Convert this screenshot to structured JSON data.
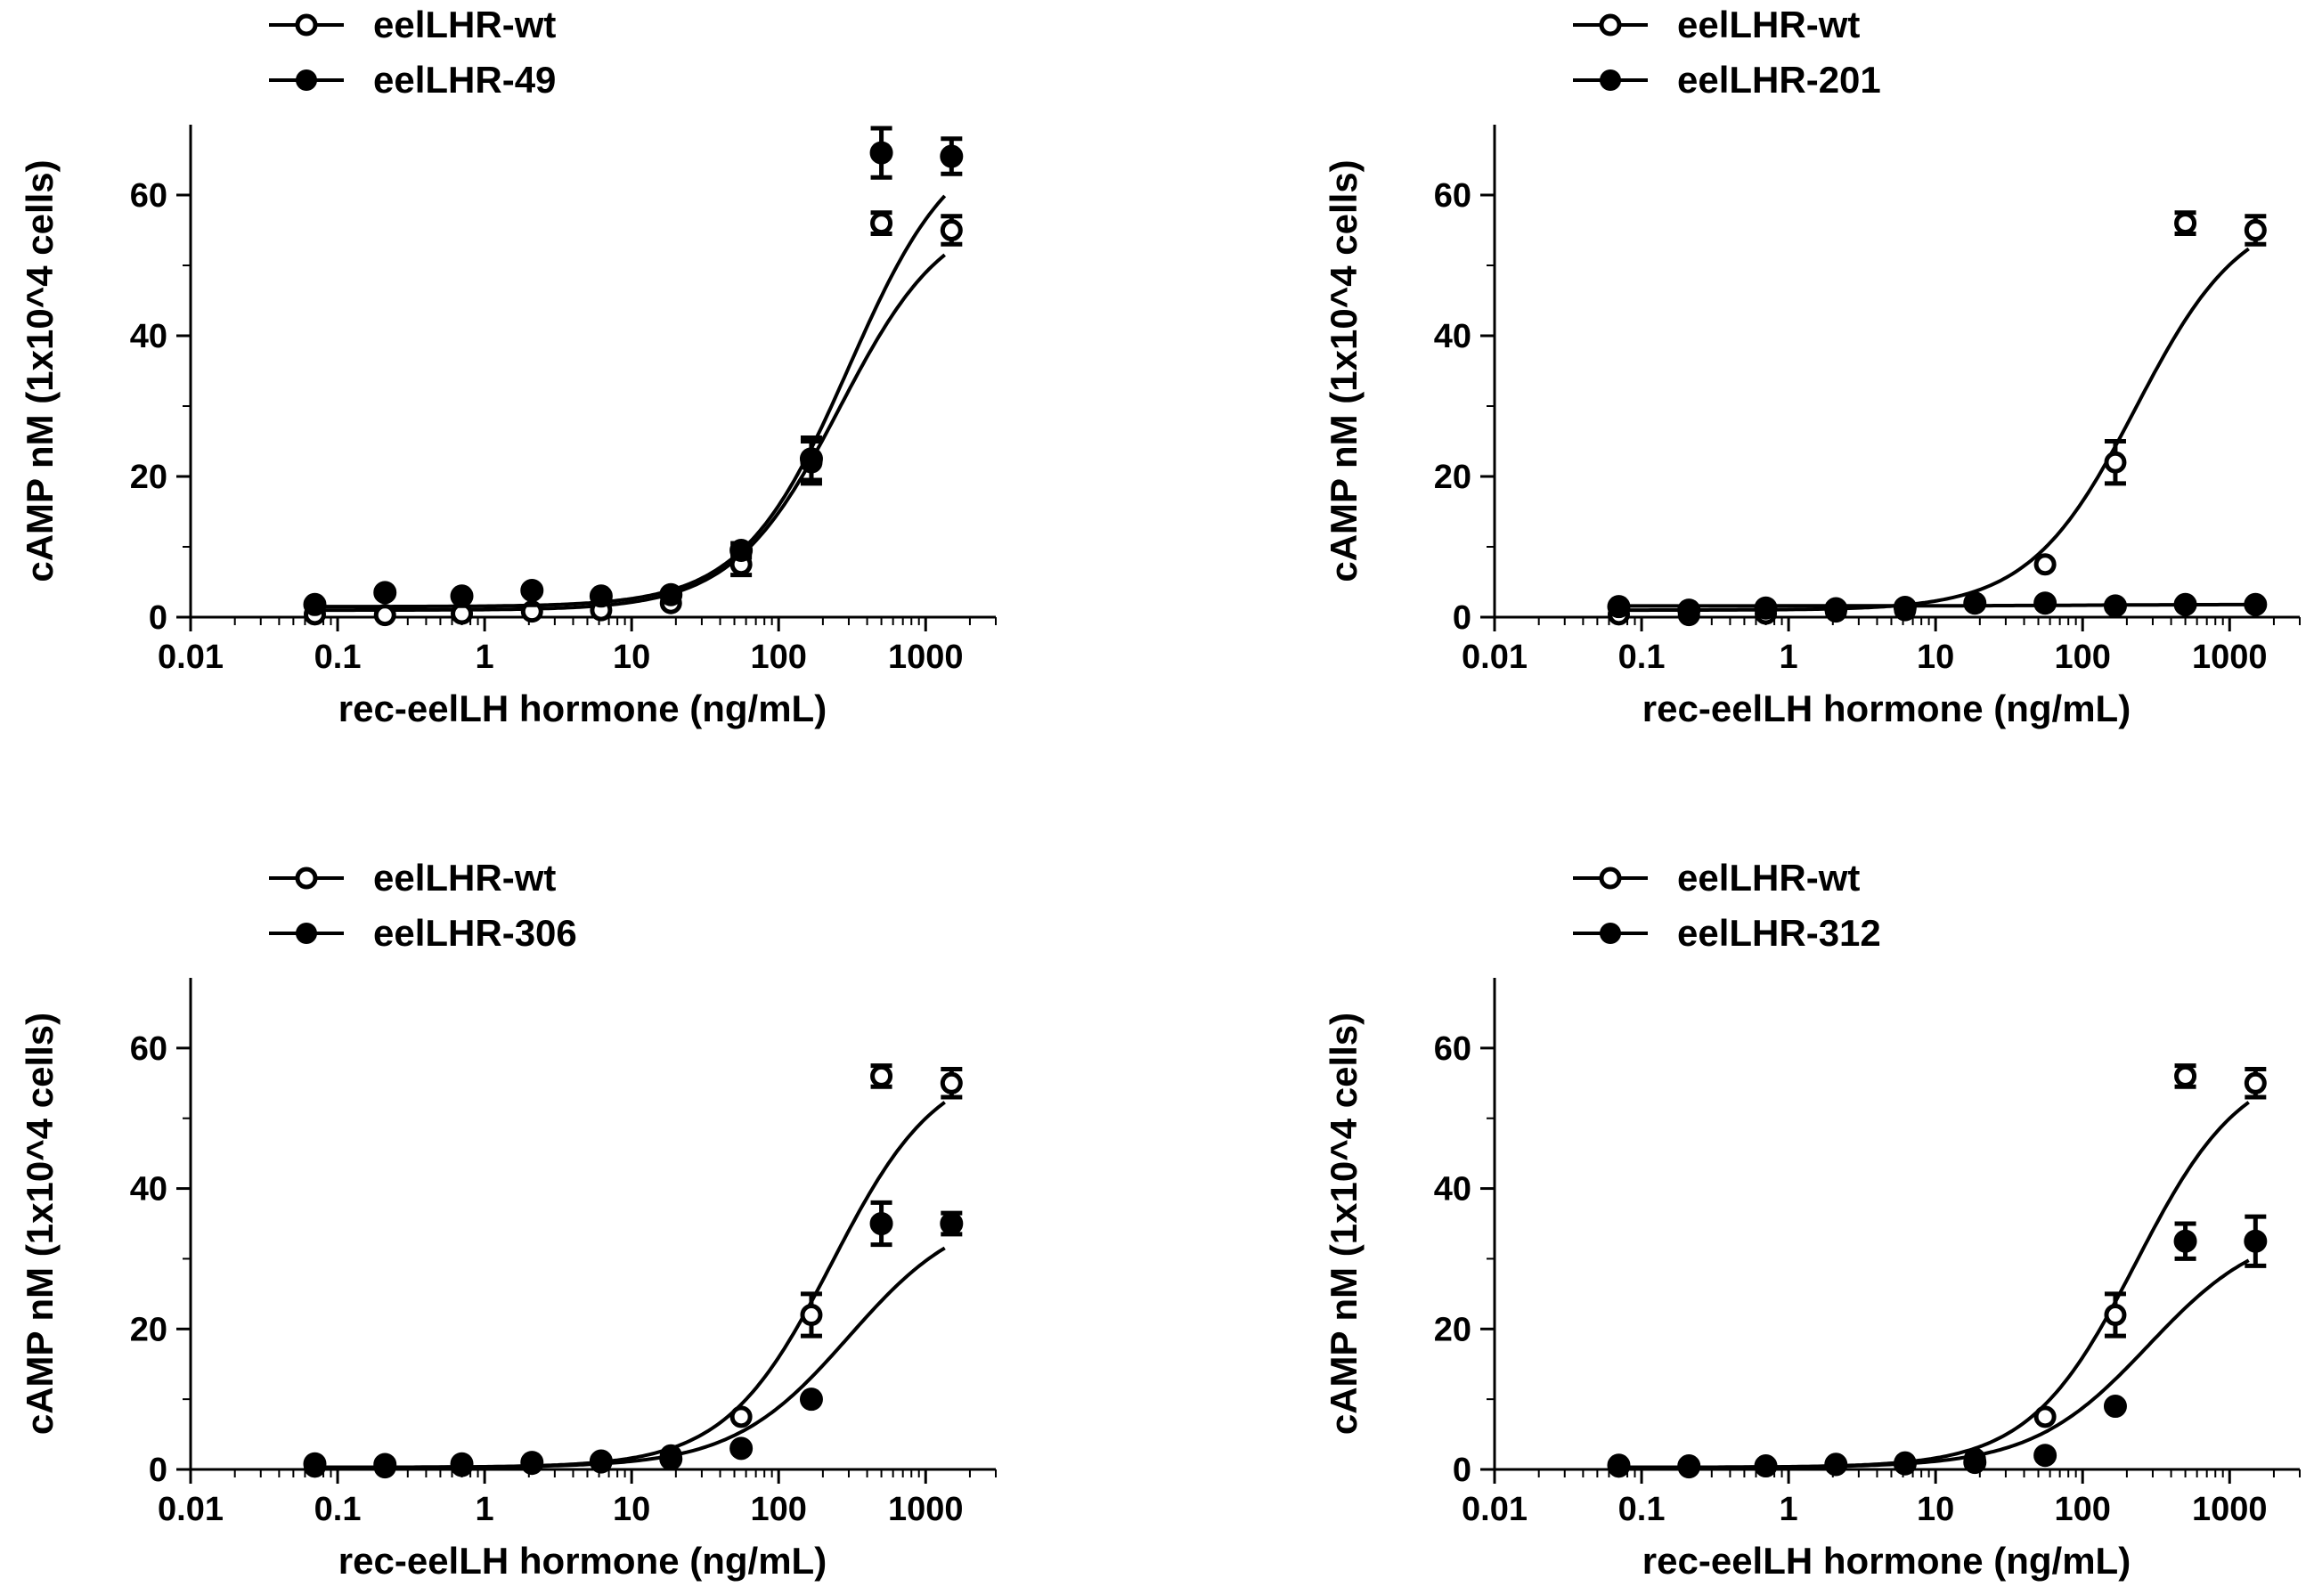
{
  "chart_data": [
    {
      "type": "scatter",
      "panel": "top-left",
      "xlabel": "rec-eelLH hormone (ng/mL)",
      "ylabel": "cAMP nM (1x10^4 cells)",
      "xscale": "log",
      "xlim": [
        0.01,
        3000
      ],
      "ylim": [
        0,
        70
      ],
      "xticks": [
        "0.01",
        "0.1",
        "1",
        "10",
        "100",
        "1000"
      ],
      "yticks": [
        "0",
        "20",
        "40",
        "60"
      ],
      "legend_position": "top-left",
      "x": [
        0.07,
        0.21,
        0.7,
        2.1,
        6.2,
        18.5,
        55.6,
        167,
        500,
        1500
      ],
      "series": [
        {
          "name": "eelLHR-wt",
          "marker": "open-circle",
          "values": [
            0.4,
            0.3,
            0.5,
            0.8,
            1.0,
            2.0,
            7.5,
            22.0,
            56.0,
            55.0
          ],
          "errors": [
            0,
            0,
            0,
            0,
            0,
            0,
            1.5,
            3.0,
            1.5,
            2.0
          ],
          "fit": {
            "bottom": 1.0,
            "top": 58.5,
            "ec50": 260,
            "hill": 1.2
          }
        },
        {
          "name": "eelLHR-49",
          "marker": "filled-circle",
          "values": [
            1.8,
            3.5,
            3.0,
            3.8,
            3.0,
            3.2,
            9.5,
            22.5,
            66.0,
            65.5
          ],
          "errors": [
            0,
            0,
            0,
            0,
            0,
            0,
            1.0,
            3.0,
            3.5,
            2.5
          ],
          "fit": {
            "bottom": 1.5,
            "top": 69.5,
            "ec50": 300,
            "hill": 1.2
          }
        }
      ]
    },
    {
      "type": "scatter",
      "panel": "top-right",
      "xlabel": "rec-eelLH hormone (ng/mL)",
      "ylabel": "cAMP nM (1x10^4 cells)",
      "xscale": "log",
      "xlim": [
        0.01,
        3000
      ],
      "ylim": [
        0,
        70
      ],
      "xticks": [
        "0.01",
        "0.1",
        "1",
        "10",
        "100",
        "1000"
      ],
      "yticks": [
        "0",
        "20",
        "40",
        "60"
      ],
      "legend_position": "top-left",
      "x": [
        0.07,
        0.21,
        0.7,
        2.1,
        6.2,
        18.5,
        55.6,
        167,
        500,
        1500
      ],
      "series": [
        {
          "name": "eelLHR-wt",
          "marker": "open-circle",
          "values": [
            0.4,
            0.3,
            0.5,
            0.8,
            1.0,
            2.0,
            7.5,
            22.0,
            56.0,
            55.0
          ],
          "errors": [
            0,
            0,
            0,
            0,
            0,
            0,
            0,
            3.0,
            1.5,
            2.0
          ],
          "fit": {
            "bottom": 1.0,
            "top": 58.5,
            "ec50": 230,
            "hill": 1.2
          }
        },
        {
          "name": "eelLHR-201",
          "marker": "filled-circle",
          "values": [
            1.5,
            1.0,
            1.3,
            1.2,
            1.4,
            2.0,
            2.0,
            1.6,
            1.8,
            1.8
          ],
          "errors": [
            0,
            0,
            0,
            0,
            0,
            0,
            0,
            0,
            0,
            0
          ],
          "fit": {
            "bottom": 1.6,
            "top": 1.8,
            "ec50": 100,
            "hill": 1.0
          }
        }
      ]
    },
    {
      "type": "scatter",
      "panel": "bottom-left",
      "xlabel": "rec-eelLH hormone (ng/mL)",
      "ylabel": "cAMP nM (1x10^4 cells)",
      "xscale": "log",
      "xlim": [
        0.01,
        3000
      ],
      "ylim": [
        0,
        70
      ],
      "xticks": [
        "0.01",
        "0.1",
        "1",
        "10",
        "100",
        "1000"
      ],
      "yticks": [
        "0",
        "20",
        "40",
        "60"
      ],
      "legend_position": "top-left",
      "x": [
        0.07,
        0.21,
        0.7,
        2.1,
        6.2,
        18.5,
        55.6,
        167,
        500,
        1500
      ],
      "series": [
        {
          "name": "eelLHR-wt",
          "marker": "open-circle",
          "values": [
            0.4,
            0.3,
            0.5,
            0.8,
            1.0,
            2.0,
            7.5,
            22.0,
            56.0,
            55.0
          ],
          "errors": [
            0,
            0,
            0,
            0,
            0,
            0,
            0,
            3.0,
            1.5,
            2.0
          ],
          "fit": {
            "bottom": 0.3,
            "top": 58.5,
            "ec50": 230,
            "hill": 1.2
          }
        },
        {
          "name": "eelLHR-306",
          "marker": "filled-circle",
          "values": [
            0.8,
            0.7,
            0.8,
            1.0,
            1.2,
            1.5,
            3.0,
            10.0,
            35.0,
            35.0
          ],
          "errors": [
            0,
            0,
            0,
            0,
            0,
            0,
            0,
            0,
            3.0,
            1.5
          ],
          "fit": {
            "bottom": 0.3,
            "top": 37.5,
            "ec50": 300,
            "hill": 1.1
          }
        }
      ]
    },
    {
      "type": "scatter",
      "panel": "bottom-right",
      "xlabel": "rec-eelLH hormone (ng/mL)",
      "ylabel": "cAMP nM (1x10^4 cells)",
      "xscale": "log",
      "xlim": [
        0.01,
        3000
      ],
      "ylim": [
        0,
        70
      ],
      "xticks": [
        "0.01",
        "0.1",
        "1",
        "10",
        "100",
        "1000"
      ],
      "yticks": [
        "0",
        "20",
        "40",
        "60"
      ],
      "legend_position": "top-left",
      "x": [
        0.07,
        0.21,
        0.7,
        2.1,
        6.2,
        18.5,
        55.6,
        167,
        500,
        1500
      ],
      "series": [
        {
          "name": "eelLHR-wt",
          "marker": "open-circle",
          "values": [
            0.4,
            0.3,
            0.5,
            0.8,
            1.0,
            1.5,
            7.5,
            22.0,
            56.0,
            55.0
          ],
          "errors": [
            0,
            0,
            0,
            0,
            0,
            0,
            0,
            3.0,
            1.5,
            2.0
          ],
          "fit": {
            "bottom": 0.3,
            "top": 58.5,
            "ec50": 230,
            "hill": 1.2
          }
        },
        {
          "name": "eelLHR-312",
          "marker": "filled-circle",
          "values": [
            0.6,
            0.5,
            0.5,
            0.7,
            0.8,
            1.0,
            2.0,
            9.0,
            32.5,
            32.5
          ],
          "errors": [
            0,
            0,
            0,
            0,
            0,
            0,
            0,
            0,
            2.5,
            3.5
          ],
          "fit": {
            "bottom": 0.3,
            "top": 35.0,
            "ec50": 280,
            "hill": 1.1
          }
        }
      ]
    }
  ]
}
